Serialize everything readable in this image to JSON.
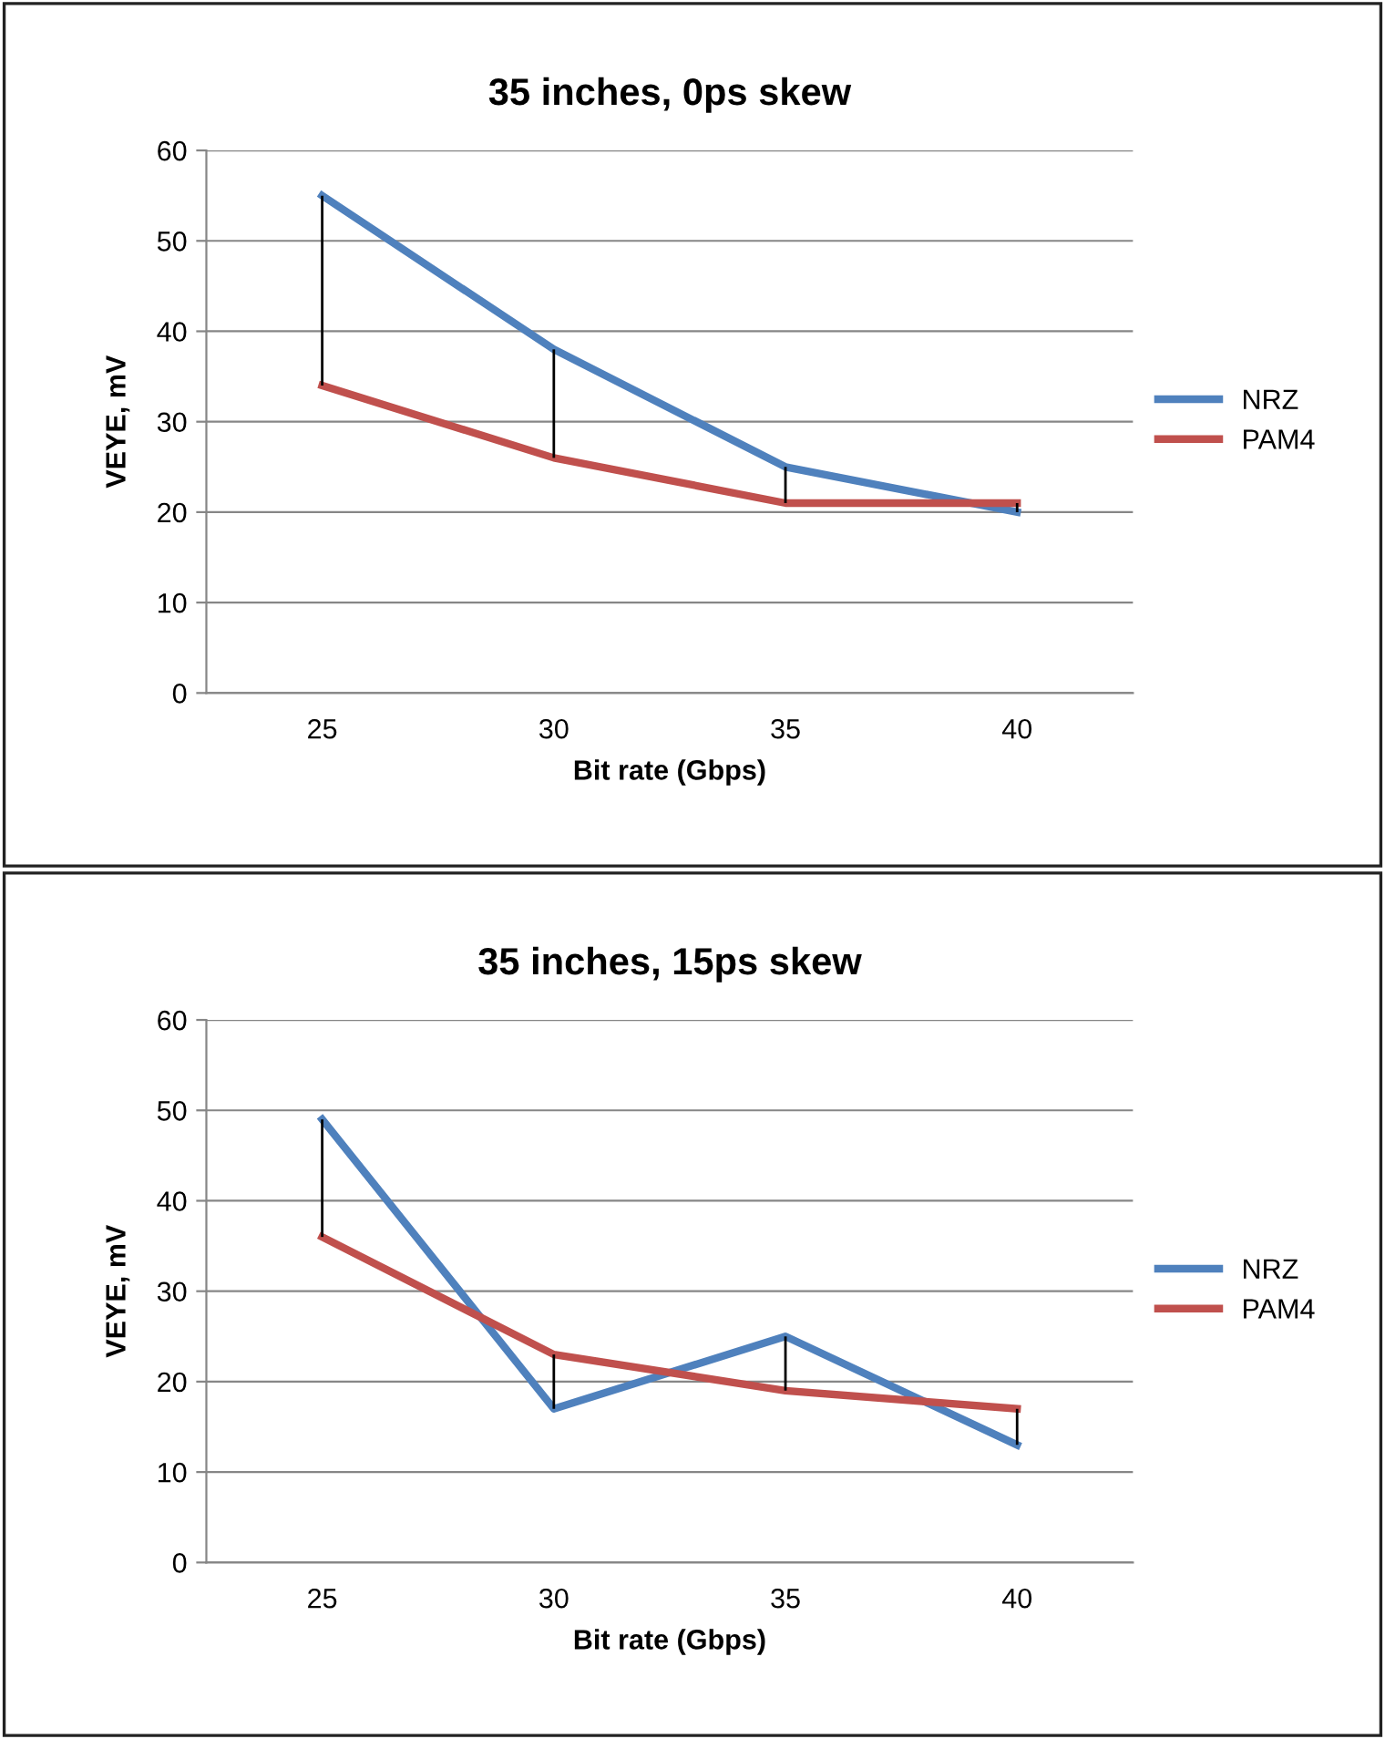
{
  "chart_data": [
    {
      "type": "line",
      "title": "35 inches, 0ps skew",
      "xlabel": "Bit rate (Gbps)",
      "ylabel": "VEYE, mV",
      "categories": [
        "25",
        "30",
        "35",
        "40"
      ],
      "series": [
        {
          "name": "NRZ",
          "color": "#4f81bd",
          "values": [
            55,
            38,
            25,
            20
          ]
        },
        {
          "name": "PAM4",
          "color": "#c0504d",
          "values": [
            34,
            26,
            21,
            21
          ],
          "errors": [
            [
              34,
              55
            ],
            [
              26,
              38
            ],
            [
              21,
              25
            ],
            [
              20,
              21
            ]
          ]
        }
      ],
      "ylim": [
        0,
        60
      ],
      "yticks": [
        0,
        10,
        20,
        30,
        40,
        50,
        60
      ],
      "grid": "y",
      "legend": "right",
      "marker": "none",
      "line_style": "solid"
    },
    {
      "type": "line",
      "title": "35 inches, 15ps skew",
      "xlabel": "Bit rate (Gbps)",
      "ylabel": "VEYE, mV",
      "categories": [
        "25",
        "30",
        "35",
        "40"
      ],
      "series": [
        {
          "name": "NRZ",
          "color": "#4f81bd",
          "values": [
            49,
            17,
            25,
            13
          ]
        },
        {
          "name": "PAM4",
          "color": "#c0504d",
          "values": [
            36,
            23,
            19,
            17
          ],
          "errors": [
            [
              36,
              49
            ],
            [
              17,
              23
            ],
            [
              19,
              25
            ],
            [
              13,
              17
            ]
          ]
        }
      ],
      "ylim": [
        0,
        60
      ],
      "yticks": [
        0,
        10,
        20,
        30,
        40,
        50,
        60
      ],
      "grid": "y",
      "legend": "right",
      "marker": "none",
      "line_style": "solid"
    }
  ]
}
